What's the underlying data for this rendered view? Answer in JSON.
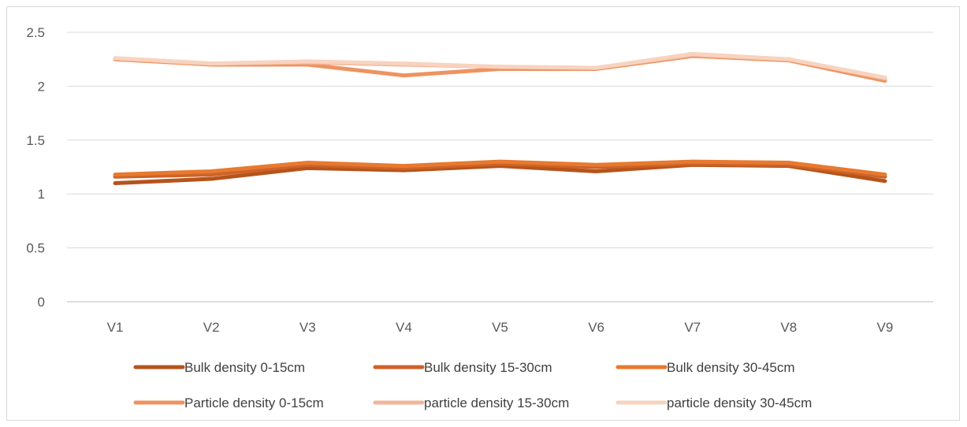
{
  "chart_data": {
    "type": "line",
    "title": "",
    "xlabel": "",
    "ylabel": "",
    "categories": [
      "V1",
      "V2",
      "V3",
      "V4",
      "V5",
      "V6",
      "V7",
      "V8",
      "V9"
    ],
    "ylim": [
      0,
      2.5
    ],
    "yticks": [
      0,
      0.5,
      1,
      1.5,
      2,
      2.5
    ],
    "grid": true,
    "legend_position": "bottom",
    "series": [
      {
        "name": "Bulk density 0-15cm",
        "color": "#b5541c",
        "values": [
          1.1,
          1.14,
          1.24,
          1.22,
          1.26,
          1.21,
          1.27,
          1.26,
          1.12
        ]
      },
      {
        "name": "Bulk density 15-30cm",
        "color": "#cd6327",
        "values": [
          1.16,
          1.18,
          1.27,
          1.24,
          1.28,
          1.25,
          1.28,
          1.27,
          1.16
        ]
      },
      {
        "name": "Bulk density 30-45cm",
        "color": "#e8792f",
        "values": [
          1.18,
          1.21,
          1.29,
          1.26,
          1.3,
          1.27,
          1.3,
          1.29,
          1.18
        ]
      },
      {
        "name": "Particle density 0-15cm",
        "color": "#ee9360",
        "values": [
          2.25,
          2.2,
          2.2,
          2.1,
          2.16,
          2.16,
          2.28,
          2.24,
          2.05
        ]
      },
      {
        "name": "particle density 15-30cm",
        "color": "#f3b598",
        "values": [
          2.26,
          2.21,
          2.22,
          2.2,
          2.18,
          2.17,
          2.29,
          2.25,
          2.07
        ]
      },
      {
        "name": "particle density 30-45cm",
        "color": "#f8d3bf",
        "values": [
          2.26,
          2.21,
          2.23,
          2.21,
          2.18,
          2.17,
          2.3,
          2.25,
          2.08
        ]
      }
    ]
  }
}
